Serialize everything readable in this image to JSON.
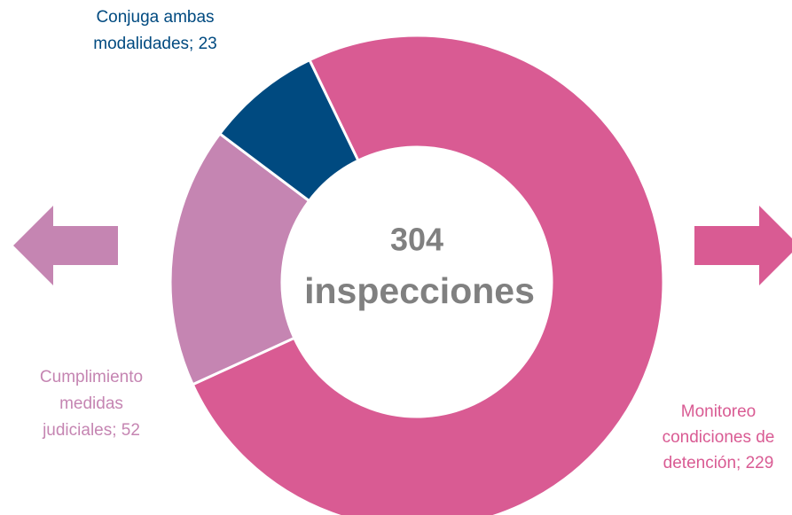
{
  "chart_data": {
    "type": "donut",
    "labels": [
      [
        "Monitoreo",
        "condiciones de",
        "detención; 229"
      ],
      [
        "Cumplimiento",
        "medidas",
        "judiciales; 52"
      ],
      [
        "Conjuga ambas",
        "modalidades; 23"
      ]
    ],
    "values": [
      229,
      52,
      23
    ],
    "colors": [
      "#d95b93",
      "#c585b2",
      "#004a80"
    ],
    "center_value": 304,
    "center_text": "inspecciones"
  }
}
